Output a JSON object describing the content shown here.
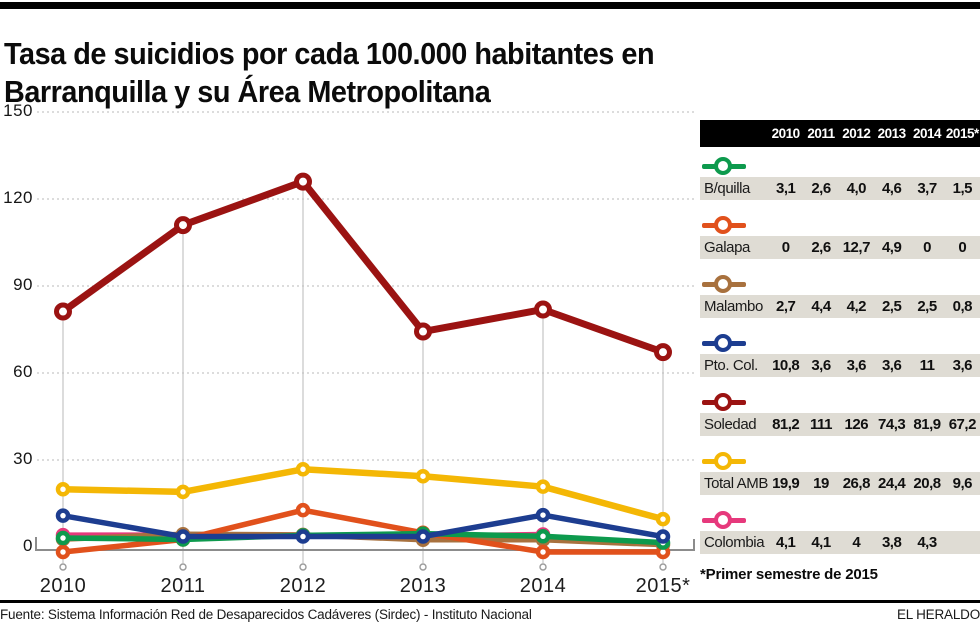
{
  "page": {
    "title_lines": [
      "Tasa de suicidios por cada 100.000 habitantes en",
      "Barranquilla y su Área Metropolitana"
    ],
    "footnote": "*Primer semestre de 2015",
    "source": "Fuente: Sistema Información Red de Desaparecidos Cadáveres (Sirdec) - Instituto Nacional",
    "brand": "EL HERALDO"
  },
  "table": {
    "year_headers": [
      "2010",
      "2011",
      "2012",
      "2013",
      "2014",
      "2015*"
    ]
  },
  "chart_data": {
    "type": "line",
    "title": "Tasa de suicidios por cada 100.000 habitantes en Barranquilla y su Área Metropolitana",
    "x": [
      "2010",
      "2011",
      "2012",
      "2013",
      "2014",
      "2015*"
    ],
    "xlabel": "",
    "ylabel": "",
    "ylim": [
      0,
      150
    ],
    "yticks": [
      0,
      30,
      60,
      90,
      120,
      150
    ],
    "grid": "horizontal dotted lines at each y tick; vertical drop lines from top series to year markers",
    "legend_position": "right side table with per-year values",
    "marker_style": "open circles (white fill, colored ring)",
    "series": [
      {
        "name": "B/quilla",
        "color": "#0d9a4d",
        "values": [
          3.1,
          2.6,
          4.0,
          4.6,
          3.7,
          1.5
        ],
        "labels": [
          "3,1",
          "2,6",
          "4,0",
          "4,6",
          "3,7",
          "1,5"
        ]
      },
      {
        "name": "Galapa",
        "color": "#e1511c",
        "values": [
          0,
          2.6,
          12.7,
          4.9,
          0,
          0
        ],
        "labels": [
          "0",
          "2,6",
          "12,7",
          "4,9",
          "0",
          "0"
        ]
      },
      {
        "name": "Malambo",
        "color": "#a8713e",
        "values": [
          2.7,
          4.4,
          4.2,
          2.5,
          2.5,
          0.8
        ],
        "labels": [
          "2,7",
          "4,4",
          "4,2",
          "2,5",
          "2,5",
          "0,8"
        ]
      },
      {
        "name": "Pto. Col.",
        "color": "#1d3d90",
        "values": [
          10.8,
          3.6,
          3.6,
          3.6,
          11,
          3.6
        ],
        "labels": [
          "10,8",
          "3,6",
          "3,6",
          "3,6",
          "11",
          "3,6"
        ]
      },
      {
        "name": "Soledad",
        "color": "#9b1312",
        "values": [
          81.2,
          111,
          126,
          74.3,
          81.9,
          67.2
        ],
        "labels": [
          "81,2",
          "111",
          "126",
          "74,3",
          "81,9",
          "67,2"
        ]
      },
      {
        "name": "Total AMB",
        "color": "#f4b705",
        "values": [
          19.9,
          19,
          26.8,
          24.4,
          20.8,
          9.6
        ],
        "labels": [
          "19,9",
          "19",
          "26,8",
          "24,4",
          "20,8",
          "9,6"
        ]
      },
      {
        "name": "Colombia",
        "color": "#e6397c",
        "values": [
          4.1,
          4.1,
          4,
          3.8,
          4.3,
          null
        ],
        "labels": [
          "4,1",
          "4,1",
          "4",
          "3,8",
          "4,3",
          ""
        ]
      }
    ],
    "z_order": [
      "Colombia",
      "Malambo",
      "Galapa",
      "B/quilla",
      "Pto. Col.",
      "Total AMB",
      "Soledad"
    ]
  }
}
